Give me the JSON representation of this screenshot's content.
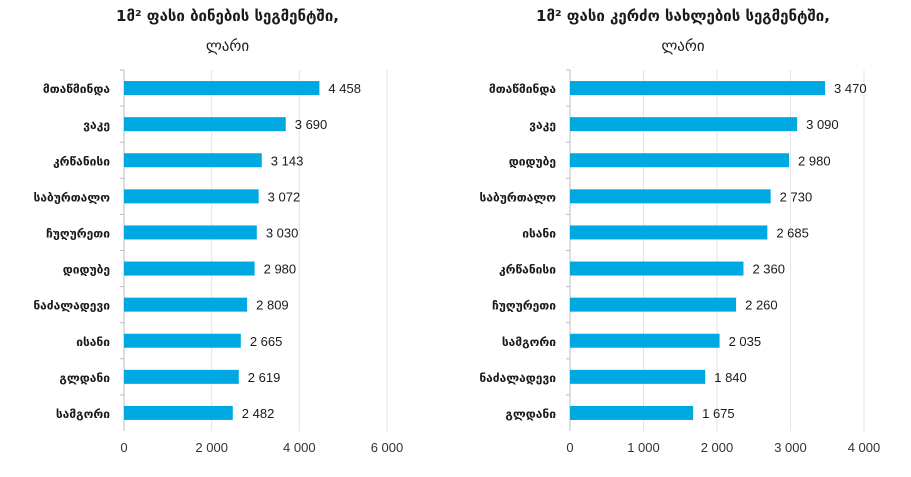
{
  "charts": [
    {
      "title_line1": "1მ² ფასი ბინების სეგმენტში,",
      "title_line2": "ლარი"
    },
    {
      "title_line1": "1მ² ფასი კერძო სახლების სეგმენტში,",
      "title_line2": "ლარი"
    }
  ],
  "chart_data": [
    {
      "type": "bar",
      "orientation": "horizontal",
      "title": "1მ² ფასი ბინების სეგმენტში, ლარი",
      "categories": [
        "მთაწმინდა",
        "ვაკე",
        "კრწანისი",
        "საბურთალო",
        "ჩუღურეთი",
        "დიდუბე",
        "ნაძალადევი",
        "ისანი",
        "გლდანი",
        "სამგორი"
      ],
      "values": [
        4458,
        3690,
        3143,
        3072,
        3030,
        2980,
        2809,
        2665,
        2619,
        2482
      ],
      "value_labels": [
        "4 458",
        "3 690",
        "3 143",
        "3 072",
        "3 030",
        "2 980",
        "2 809",
        "2 665",
        "2 619",
        "2 482"
      ],
      "xlim": [
        0,
        6000
      ],
      "ticks": [
        0,
        2000,
        4000,
        6000
      ],
      "tick_labels": [
        "0",
        "2 000",
        "4 000",
        "6 000"
      ],
      "grid": true,
      "bar_color": "#00a8e1"
    },
    {
      "type": "bar",
      "orientation": "horizontal",
      "title": "1მ² ფასი კერძო სახლების სეგმენტში, ლარი",
      "categories": [
        "მთაწმინდა",
        "ვაკე",
        "დიდუბე",
        "საბურთალო",
        "ისანი",
        "კრწანისი",
        "ჩუღურეთი",
        "სამგორი",
        "ნაძალადევი",
        "გლდანი"
      ],
      "values": [
        3470,
        3090,
        2980,
        2730,
        2685,
        2360,
        2260,
        2035,
        1840,
        1675
      ],
      "value_labels": [
        "3 470",
        "3 090",
        "2 980",
        "2 730",
        "2 685",
        "2 360",
        "2 260",
        "2 035",
        "1 840",
        "1 675"
      ],
      "xlim": [
        0,
        4000
      ],
      "ticks": [
        0,
        1000,
        2000,
        3000,
        4000
      ],
      "tick_labels": [
        "0",
        "1 000",
        "2 000",
        "3 000",
        "4 000"
      ],
      "grid": true,
      "bar_color": "#00a8e1"
    }
  ]
}
